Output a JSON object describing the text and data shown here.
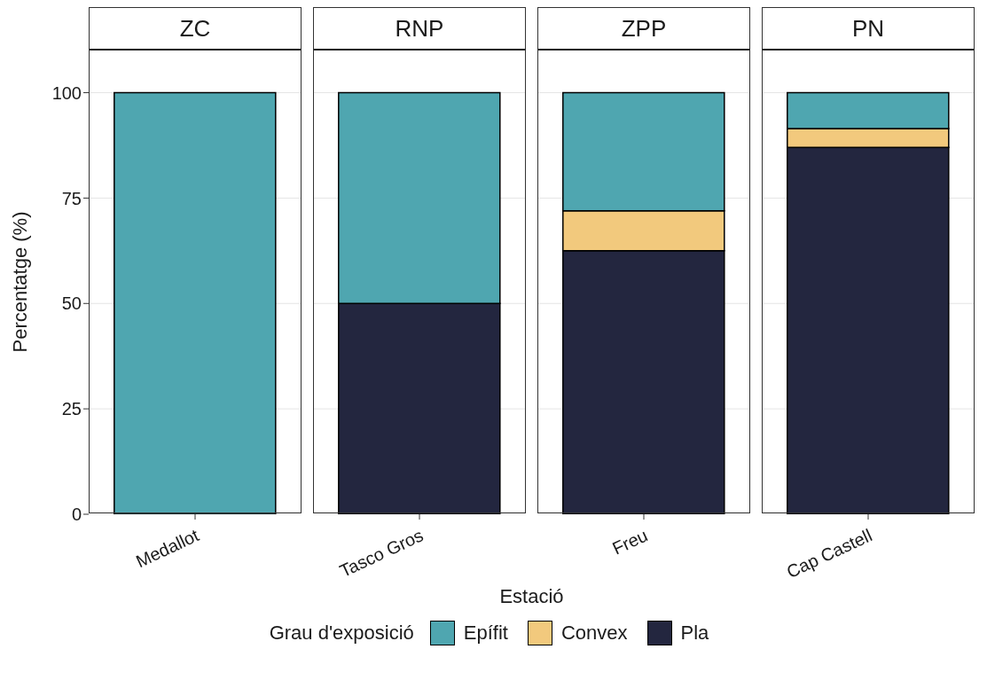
{
  "chart_data": [
    {
      "type": "bar",
      "title": "ZC",
      "categories": [
        "Medallot"
      ],
      "stacked": true,
      "ylabel": "Percentatge (%)",
      "legend_title": "Grau d'exposició",
      "legend": "bottom",
      "ylim": [
        0,
        110
      ],
      "yticks": [
        0,
        25,
        50,
        75,
        100
      ],
      "grid": "y",
      "series": [
        {
          "name": "Pla",
          "color": "#23263f",
          "values": [
            0
          ]
        },
        {
          "name": "Convex",
          "color": "#f2c97d",
          "values": [
            0
          ]
        },
        {
          "name": "Epífit",
          "color": "#4fa6b0",
          "values": [
            100
          ]
        }
      ]
    },
    {
      "type": "bar",
      "title": "RNP",
      "categories": [
        "Tasco Gros"
      ],
      "stacked": true,
      "xlabel": "Estació",
      "ylim": [
        0,
        110
      ],
      "yticks": [
        0,
        25,
        50,
        75,
        100
      ],
      "grid": "y",
      "tick_labels": "x",
      "series": [
        {
          "color": "#23263f",
          "values": [
            50
          ]
        },
        {
          "color": "#f2c97d",
          "values": [
            0
          ]
        },
        {
          "color": "#4fa6b0",
          "values": [
            50
          ]
        }
      ]
    },
    {
      "type": "bar",
      "title": "ZPP",
      "categories": [
        "Freu"
      ],
      "stacked": true,
      "ylim": [
        0,
        110
      ],
      "yticks": [
        0,
        25,
        50,
        75,
        100
      ],
      "grid": "y",
      "tick_labels": "x",
      "series": [
        {
          "color": "#23263f",
          "values": [
            62.5
          ]
        },
        {
          "color": "#f2c97d",
          "values": [
            9.5
          ]
        },
        {
          "color": "#4fa6b0",
          "values": [
            28
          ]
        }
      ]
    },
    {
      "type": "bar",
      "title": "PN",
      "categories": [
        "Cap Castell"
      ],
      "stacked": true,
      "ylim": [
        0,
        110
      ],
      "yticks": [
        0,
        25,
        50,
        75,
        100
      ],
      "grid": "y",
      "tick_labels": "x",
      "series": [
        {
          "color": "#23263f",
          "values": [
            87
          ]
        },
        {
          "color": "#f2c97d",
          "values": [
            4.5
          ]
        },
        {
          "color": "#4fa6b0",
          "values": [
            8.5
          ]
        }
      ]
    }
  ]
}
